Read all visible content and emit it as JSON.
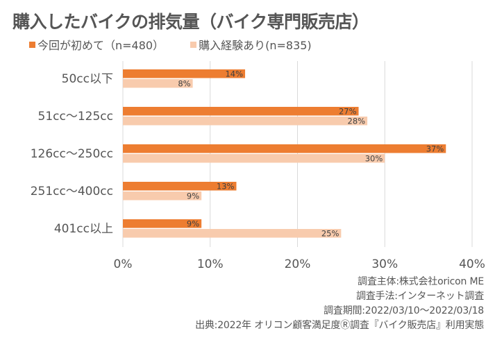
{
  "chart_data": {
    "type": "bar",
    "orientation": "horizontal",
    "title": "購入したバイクの排気量（バイク専門販売店）",
    "categories": [
      "50cc以下",
      "51cc～125cc",
      "126cc～250cc",
      "251cc～400cc",
      "401cc以上"
    ],
    "series": [
      {
        "name": "今回が初めて（n=480）",
        "color": "#ED7D31",
        "values": [
          14,
          27,
          37,
          13,
          9
        ],
        "labels": [
          "14%",
          "27%",
          "37%",
          "13%",
          "9%"
        ]
      },
      {
        "name": "購入経験あり(n=835)",
        "color": "#F8CBAD",
        "values": [
          8,
          28,
          30,
          9,
          25
        ],
        "labels": [
          "8%",
          "28%",
          "30%",
          "9%",
          "25%"
        ]
      }
    ],
    "xlim": [
      0,
      40
    ],
    "xticks": [
      "0%",
      "10%",
      "20%",
      "30%",
      "40%"
    ],
    "xtick_values": [
      0,
      10,
      20,
      30,
      40
    ],
    "grid": true,
    "legend_position": "top-left"
  },
  "notes": [
    "調査主体:株式会社oricon ME",
    "調査手法:インターネット調査",
    "調査期間:2022/03/10～2022/03/18",
    "出典:2022年 オリコン顧客満足度Ⓡ調査『バイク販売店』利用実態"
  ]
}
